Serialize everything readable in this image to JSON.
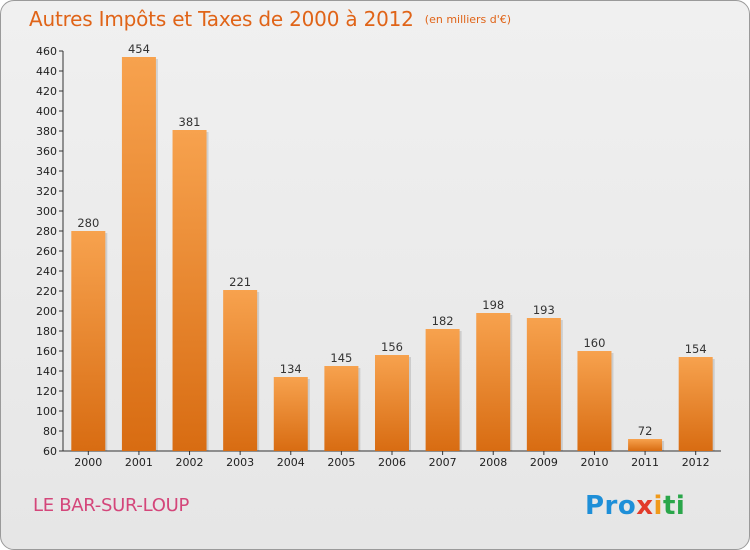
{
  "title": "Autres Impôts et Taxes de 2000 à 2012",
  "unit_note": "(en milliers d'€)",
  "place_name": "LE BAR-SUR-LOUP",
  "logo": {
    "text": "Proxiti",
    "letters": [
      "Pro",
      "x",
      "i",
      "ti"
    ],
    "colors": [
      "#1e8fd8",
      "#e23a2a",
      "#f09a1a",
      "#2aa64a"
    ]
  },
  "colors": {
    "title": "#e06418",
    "place": "#d4467a",
    "bar_light": "#f7a24e",
    "bar_dark": "#d86c12"
  },
  "chart_data": {
    "type": "bar",
    "title": "Autres Impôts et Taxes de 2000 à 2012",
    "subtitle": "(en milliers d'€)",
    "xlabel": "",
    "ylabel": "",
    "categories": [
      "2000",
      "2001",
      "2002",
      "2003",
      "2004",
      "2005",
      "2006",
      "2007",
      "2008",
      "2009",
      "2010",
      "2011",
      "2012"
    ],
    "values": [
      280,
      454,
      381,
      221,
      134,
      145,
      156,
      182,
      198,
      193,
      160,
      72,
      154
    ],
    "ylim": [
      60,
      460
    ],
    "yticks": [
      60,
      80,
      100,
      120,
      140,
      160,
      180,
      200,
      220,
      240,
      260,
      280,
      300,
      320,
      340,
      360,
      380,
      400,
      420,
      440,
      460
    ],
    "grid": false,
    "legend": "none"
  }
}
